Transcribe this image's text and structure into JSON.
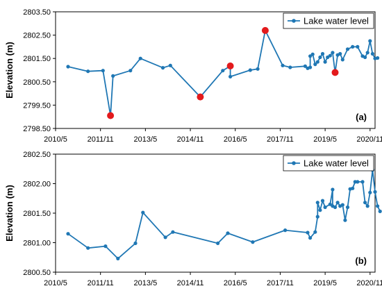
{
  "chart_data": [
    {
      "type": "line",
      "panel_label": "(a)",
      "ylabel": "Elevation (m)",
      "xlabel": "",
      "ylim": [
        2798.5,
        2803.5
      ],
      "yticks": [
        "2798.50",
        "2799.50",
        "2800.50",
        "2801.50",
        "2802.50",
        "2803.50"
      ],
      "xlim": [
        "2010-05",
        "2021-01"
      ],
      "xticks": [
        "2010/5",
        "2011/11",
        "2013/5",
        "2014/11",
        "2016/5",
        "2017/11",
        "2019/5",
        "2020/11"
      ],
      "legend": {
        "placement": "top-right",
        "entries": [
          "Lake water level"
        ]
      },
      "colors": {
        "line": "#1f77b4",
        "highlight": "#e31a1c"
      },
      "series": [
        {
          "name": "Lake water level",
          "points": [
            [
              "2010-10",
              2801.15
            ],
            [
              "2011-06",
              2800.95
            ],
            [
              "2011-12",
              2800.98
            ],
            [
              "2012-03",
              2799.05
            ],
            [
              "2012-04",
              2800.75
            ],
            [
              "2012-11",
              2800.98
            ],
            [
              "2013-03",
              2801.5
            ],
            [
              "2013-12",
              2801.1
            ],
            [
              "2014-03",
              2801.2
            ],
            [
              "2015-03",
              2799.85
            ],
            [
              "2015-12",
              2800.98
            ],
            [
              "2016-03",
              2801.18
            ],
            [
              "2016-03",
              2800.72
            ],
            [
              "2016-11",
              2801.0
            ],
            [
              "2017-02",
              2801.05
            ],
            [
              "2017-05",
              2802.7
            ],
            [
              "2017-12",
              2801.2
            ],
            [
              "2018-03",
              2801.12
            ],
            [
              "2018-09",
              2801.17
            ],
            [
              "2018-10",
              2801.08
            ],
            [
              "2018-11",
              2801.12
            ],
            [
              "2018-11",
              2801.6
            ],
            [
              "2018-12",
              2801.68
            ],
            [
              "2019-01",
              2801.25
            ],
            [
              "2019-02",
              2801.35
            ],
            [
              "2019-03",
              2801.55
            ],
            [
              "2019-04",
              2801.7
            ],
            [
              "2019-05",
              2801.35
            ],
            [
              "2019-06",
              2801.55
            ],
            [
              "2019-07",
              2801.62
            ],
            [
              "2019-08",
              2801.75
            ],
            [
              "2019-09",
              2800.9
            ],
            [
              "2019-10",
              2801.65
            ],
            [
              "2019-11",
              2801.7
            ],
            [
              "2019-12",
              2801.45
            ],
            [
              "2020-02",
              2801.9
            ],
            [
              "2020-04",
              2802.0
            ],
            [
              "2020-06",
              2802.0
            ],
            [
              "2020-08",
              2801.6
            ],
            [
              "2020-09",
              2801.55
            ],
            [
              "2020-10",
              2801.75
            ],
            [
              "2020-11",
              2802.25
            ],
            [
              "2020-12",
              2801.7
            ],
            [
              "2021-01",
              2801.5
            ],
            [
              "2021-02",
              2801.52
            ]
          ]
        }
      ],
      "highlighted_points": [
        [
          "2012-03",
          2799.05
        ],
        [
          "2015-03",
          2799.85
        ],
        [
          "2016-03",
          2801.18
        ],
        [
          "2017-05",
          2802.7
        ],
        [
          "2019-09",
          2800.9
        ]
      ]
    },
    {
      "type": "line",
      "panel_label": "(b)",
      "ylabel": "Elevation (m)",
      "xlabel": "",
      "ylim": [
        2800.5,
        2802.5
      ],
      "yticks": [
        "2800.50",
        "2801.00",
        "2801.50",
        "2802.00",
        "2802.50"
      ],
      "xlim": [
        "2010-05",
        "2021-01"
      ],
      "xticks": [
        "2010/5",
        "2011/11",
        "2013/5",
        "2014/11",
        "2016/5",
        "2017/11",
        "2019/5",
        "2020/11"
      ],
      "legend": {
        "placement": "top-right",
        "entries": [
          "Lake water level"
        ]
      },
      "colors": {
        "line": "#1f77b4"
      },
      "series": [
        {
          "name": "Lake water level",
          "points": [
            [
              "2010-10",
              2801.15
            ],
            [
              "2011-06",
              2800.91
            ],
            [
              "2012-01",
              2800.94
            ],
            [
              "2012-06",
              2800.73
            ],
            [
              "2013-01",
              2800.99
            ],
            [
              "2013-04",
              2801.51
            ],
            [
              "2014-01",
              2801.09
            ],
            [
              "2014-04",
              2801.18
            ],
            [
              "2015-10",
              2800.99
            ],
            [
              "2016-02",
              2801.16
            ],
            [
              "2016-12",
              2801.01
            ],
            [
              "2018-01",
              2801.21
            ],
            [
              "2018-10",
              2801.17
            ],
            [
              "2018-11",
              2801.08
            ],
            [
              "2019-01",
              2801.18
            ],
            [
              "2019-02",
              2801.44
            ],
            [
              "2019-02",
              2801.68
            ],
            [
              "2019-03",
              2801.55
            ],
            [
              "2019-04",
              2801.71
            ],
            [
              "2019-05",
              2801.6
            ],
            [
              "2019-07",
              2801.65
            ],
            [
              "2019-08",
              2801.9
            ],
            [
              "2019-08",
              2801.62
            ],
            [
              "2019-09",
              2801.6
            ],
            [
              "2019-10",
              2801.68
            ],
            [
              "2019-11",
              2801.62
            ],
            [
              "2019-12",
              2801.64
            ],
            [
              "2020-01",
              2801.38
            ],
            [
              "2020-02",
              2801.6
            ],
            [
              "2020-03",
              2801.91
            ],
            [
              "2020-04",
              2801.92
            ],
            [
              "2020-05",
              2802.03
            ],
            [
              "2020-06",
              2802.03
            ],
            [
              "2020-08",
              2802.03
            ],
            [
              "2020-09",
              2801.68
            ],
            [
              "2020-10",
              2801.62
            ],
            [
              "2020-11",
              2801.85
            ],
            [
              "2020-12",
              2802.23
            ],
            [
              "2021-01",
              2801.86
            ],
            [
              "2021-02",
              2801.62
            ],
            [
              "2021-03",
              2801.53
            ]
          ]
        }
      ]
    }
  ]
}
